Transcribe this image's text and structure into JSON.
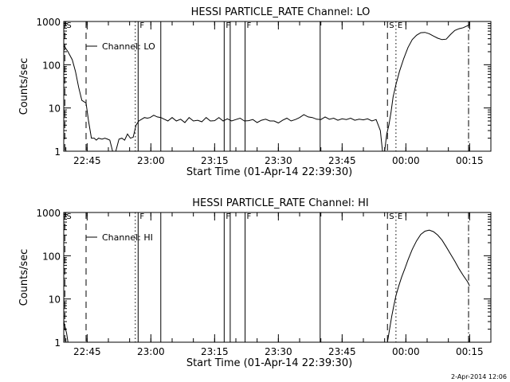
{
  "timestamp": "2-Apr-2014 12:06",
  "chart_data": [
    {
      "type": "line",
      "title": "HESSI PARTICLE_RATE Channel: LO",
      "xlabel": "Start Time (01-Apr-14 22:39:30)",
      "ylabel": "Counts/sec",
      "xlim": [
        "22:39:30",
        "00:20:00"
      ],
      "ylim": [
        1,
        1000
      ],
      "yscale": "log",
      "x_ticks": [
        "22:45",
        "23:00",
        "23:15",
        "23:30",
        "23:45",
        "00:00",
        "00:15"
      ],
      "y_ticks": [
        "1",
        "10",
        "100",
        "1000"
      ],
      "legend": {
        "label": "Channel: LO",
        "position": "top-left"
      },
      "markers": [
        {
          "time": "22:39:45",
          "style": "dashed",
          "label": "S"
        },
        {
          "time": "22:44:45",
          "style": "dashed",
          "label": ""
        },
        {
          "time": "22:56:20",
          "style": "dotted",
          "label": ""
        },
        {
          "time": "22:57:00",
          "style": "solid",
          "label": "F"
        },
        {
          "time": "23:02:20",
          "style": "solid",
          "label": ""
        },
        {
          "time": "23:17:15",
          "style": "solid",
          "label": "F"
        },
        {
          "time": "23:18:40",
          "style": "solid",
          "label": ""
        },
        {
          "time": "23:22:10",
          "style": "solid",
          "label": "F"
        },
        {
          "time": "23:39:50",
          "style": "solid",
          "label": ""
        },
        {
          "time": "23:55:40",
          "style": "dashed",
          "label": "S"
        },
        {
          "time": "23:57:40",
          "style": "dotted",
          "label": "E"
        },
        {
          "time": "00:14:45",
          "style": "dashdot",
          "label": ""
        }
      ],
      "series": [
        {
          "name": "Channel: LO",
          "x": [
            "22:39:30",
            "22:40:30",
            "22:41:30",
            "22:42:15",
            "22:43:00",
            "22:43:45",
            "22:44:45",
            "22:45:20",
            "22:46:00",
            "22:46:40",
            "22:47:10",
            "22:47:40",
            "22:48:30",
            "22:49:10",
            "22:49:50",
            "22:50:20",
            "22:51:00",
            "22:51:45",
            "22:52:30",
            "22:53:10",
            "22:53:50",
            "22:54:30",
            "22:55:10",
            "22:55:50",
            "22:56:30",
            "22:57:10",
            "22:57:50",
            "22:58:30",
            "22:59:10",
            "22:59:50",
            "23:00:40",
            "23:01:30",
            "23:02:20",
            "23:03:10",
            "23:04:00",
            "23:05:00",
            "23:06:00",
            "23:07:00",
            "23:08:00",
            "23:09:00",
            "23:10:00",
            "23:11:00",
            "23:12:00",
            "23:13:00",
            "23:14:00",
            "23:15:00",
            "23:16:00",
            "23:17:00",
            "23:18:00",
            "23:19:00",
            "23:20:00",
            "23:21:00",
            "23:22:00",
            "23:23:00",
            "23:24:00",
            "23:25:00",
            "23:26:00",
            "23:27:00",
            "23:28:00",
            "23:29:00",
            "23:30:00",
            "23:31:00",
            "23:32:00",
            "23:33:00",
            "23:34:00",
            "23:35:00",
            "23:36:00",
            "23:37:00",
            "23:38:00",
            "23:39:00",
            "23:40:00",
            "23:41:00",
            "23:42:00",
            "23:43:00",
            "23:44:00",
            "23:45:00",
            "23:46:00",
            "23:47:00",
            "23:48:00",
            "23:49:00",
            "23:50:00",
            "23:51:00",
            "23:52:00",
            "23:53:00",
            "23:54:00",
            "23:54:30",
            "23:55:00",
            "23:55:30",
            "23:56:00",
            "23:56:30",
            "23:57:00",
            "23:57:40",
            "23:58:30",
            "23:59:30",
            "00:00:30",
            "00:01:30",
            "00:02:30",
            "00:03:30",
            "00:04:30",
            "00:05:30",
            "00:06:30",
            "00:07:30",
            "00:08:30",
            "00:09:30",
            "00:10:30",
            "00:11:30",
            "00:12:30",
            "00:13:30",
            "00:14:30",
            "00:15:00"
          ],
          "y": [
            280,
            200,
            130,
            70,
            30,
            15,
            13,
            5,
            2,
            2,
            1.8,
            2,
            1.9,
            2,
            1.9,
            1.8,
            1,
            1,
            1.9,
            2,
            1.8,
            2.5,
            2,
            2.1,
            4,
            5,
            5.5,
            6,
            5.8,
            6,
            6.8,
            6.2,
            6,
            5.5,
            5,
            6,
            5,
            5.5,
            4.6,
            6,
            5,
            5.2,
            4.8,
            6,
            5,
            5.1,
            6,
            5,
            5.6,
            5,
            5.4,
            5.8,
            5,
            5.1,
            5.4,
            4.6,
            5.2,
            5.5,
            5,
            5,
            4.5,
            5.2,
            5.8,
            5,
            5.4,
            6,
            7,
            6.2,
            6,
            5.5,
            5.4,
            6.2,
            5.5,
            5.8,
            5.2,
            5.6,
            5.4,
            5.8,
            5.2,
            5.5,
            5.3,
            5.6,
            5,
            5.4,
            3,
            1,
            1,
            2.5,
            4,
            8,
            18,
            35,
            70,
            140,
            250,
            380,
            480,
            550,
            560,
            520,
            460,
            410,
            380,
            390,
            500,
            620,
            680,
            720,
            800,
            850
          ]
        }
      ]
    },
    {
      "type": "line",
      "title": "HESSI PARTICLE_RATE Channel: HI",
      "xlabel": "Start Time (01-Apr-14 22:39:30)",
      "ylabel": "Counts/sec",
      "xlim": [
        "22:39:30",
        "00:20:00"
      ],
      "ylim": [
        1,
        1000
      ],
      "yscale": "log",
      "x_ticks": [
        "22:45",
        "23:00",
        "23:15",
        "23:30",
        "23:45",
        "00:00",
        "00:15"
      ],
      "y_ticks": [
        "1",
        "10",
        "100",
        "1000"
      ],
      "legend": {
        "label": "Channel: HI",
        "position": "top-left"
      },
      "markers": [
        {
          "time": "22:39:45",
          "style": "dashed",
          "label": "S"
        },
        {
          "time": "22:44:45",
          "style": "dashed",
          "label": ""
        },
        {
          "time": "22:56:20",
          "style": "dotted",
          "label": ""
        },
        {
          "time": "22:57:00",
          "style": "solid",
          "label": "F"
        },
        {
          "time": "23:02:20",
          "style": "solid",
          "label": ""
        },
        {
          "time": "23:17:15",
          "style": "solid",
          "label": "F"
        },
        {
          "time": "23:18:40",
          "style": "solid",
          "label": ""
        },
        {
          "time": "23:22:10",
          "style": "solid",
          "label": "F"
        },
        {
          "time": "23:39:50",
          "style": "solid",
          "label": ""
        },
        {
          "time": "23:55:40",
          "style": "dashed",
          "label": "S"
        },
        {
          "time": "23:57:40",
          "style": "dotted",
          "label": "E"
        },
        {
          "time": "00:14:45",
          "style": "dashdot",
          "label": ""
        }
      ],
      "series": [
        {
          "name": "Channel: HI",
          "x": [
            "22:39:30",
            "22:39:50",
            "22:40:10",
            "22:40:30",
            "23:55:40",
            "23:56:10",
            "23:56:40",
            "23:57:10",
            "23:57:40",
            "23:58:20",
            "23:59:00",
            "23:59:45",
            "00:00:30",
            "00:01:30",
            "00:02:30",
            "00:03:30",
            "00:04:30",
            "00:05:30",
            "00:06:30",
            "00:07:30",
            "00:08:30",
            "00:09:30",
            "00:10:30",
            "00:11:30",
            "00:12:30",
            "00:13:30",
            "00:14:30",
            "00:15:00"
          ],
          "y": [
            3,
            2.2,
            1.6,
            1,
            1,
            2,
            4,
            7,
            12,
            20,
            32,
            50,
            80,
            140,
            220,
            310,
            370,
            390,
            360,
            300,
            230,
            160,
            110,
            75,
            50,
            35,
            25,
            20
          ]
        }
      ]
    }
  ]
}
